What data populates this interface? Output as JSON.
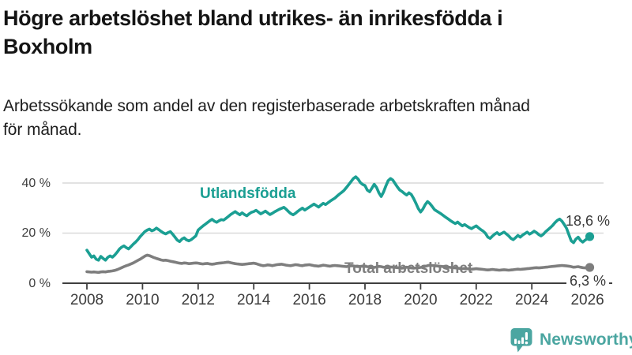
{
  "header": {
    "title_line1": "Högre arbetslöshet bland utrikes- än inrikesfödda i",
    "title_line2": "Boxholm",
    "subtitle_line1": "Arbetssökande som andel av den registerbaserade arbetskraften månad",
    "subtitle_line2": "för månad."
  },
  "colors": {
    "teal": "#1b9f93",
    "gray": "#7e7e7e",
    "axis": "#3f3f3f",
    "grid": "#d9d9d9",
    "value_label": "#383838",
    "brand_teal": "#4ba6a1"
  },
  "chart_data": {
    "type": "line",
    "title": "Högre arbetslöshet bland utrikes- än inrikesfödda i Boxholm",
    "subtitle": "Arbetssökande som andel av den registerbaserade arbetskraften månad för månad.",
    "unit": "%",
    "x_start_year": 2008,
    "points_per_year": 12,
    "x_ticks": [
      2008,
      2010,
      2012,
      2014,
      2016,
      2018,
      2020,
      2022,
      2024,
      2026
    ],
    "y_ticks": [
      {
        "v": 0,
        "label": "0 %"
      },
      {
        "v": 20,
        "label": "20 %"
      },
      {
        "v": 40,
        "label": "40 %"
      }
    ],
    "ylim": [
      0,
      45
    ],
    "grid": "horizontal",
    "legend": "inline-labels",
    "series": [
      {
        "id": "utlandsfodda",
        "name": "Utlandsfödda",
        "color": "#1b9f93",
        "end_label": "18,6 %",
        "end_value": 18.6,
        "values": [
          13.2,
          11.8,
          10.4,
          10.9,
          9.6,
          9.2,
          10.7,
          9.9,
          9.2,
          10.3,
          10.9,
          10.4,
          11.2,
          12.3,
          13.6,
          14.4,
          14.9,
          14.2,
          13.7,
          14.6,
          15.6,
          16.4,
          17.4,
          18.6,
          19.6,
          20.6,
          21.2,
          21.6,
          20.9,
          21.3,
          22.0,
          21.4,
          20.7,
          20.1,
          19.7,
          20.2,
          20.6,
          19.6,
          18.4,
          17.2,
          16.6,
          17.6,
          18.1,
          17.3,
          16.9,
          17.4,
          18.1,
          18.9,
          21.2,
          22.0,
          22.8,
          23.5,
          24.2,
          24.9,
          25.5,
          24.8,
          24.3,
          24.9,
          25.4,
          25.2,
          25.9,
          26.6,
          27.4,
          28.0,
          28.6,
          27.9,
          27.3,
          28.1,
          27.4,
          26.9,
          27.7,
          28.3,
          28.6,
          29.1,
          28.4,
          27.7,
          28.2,
          28.8,
          28.1,
          27.4,
          27.9,
          28.5,
          29.0,
          29.5,
          29.9,
          30.3,
          29.5,
          28.6,
          27.8,
          27.3,
          27.9,
          28.7,
          29.4,
          30.0,
          29.2,
          29.8,
          30.4,
          31.0,
          31.6,
          31.0,
          30.4,
          31.2,
          31.9,
          31.4,
          32.1,
          32.8,
          33.4,
          34.0,
          34.8,
          35.6,
          36.3,
          37.1,
          38.2,
          39.4,
          40.6,
          41.8,
          42.5,
          41.6,
          40.2,
          39.4,
          39.0,
          37.2,
          36.5,
          38.0,
          39.5,
          38.2,
          36.1,
          34.6,
          36.4,
          38.8,
          40.9,
          41.8,
          41.2,
          39.8,
          38.4,
          37.2,
          36.6,
          35.8,
          35.2,
          36.1,
          35.4,
          33.8,
          31.9,
          29.8,
          28.4,
          29.6,
          31.4,
          32.6,
          31.8,
          30.6,
          29.4,
          28.8,
          28.2,
          27.6,
          26.9,
          26.2,
          25.6,
          24.9,
          24.3,
          23.8,
          24.4,
          23.6,
          22.9,
          23.4,
          22.8,
          22.2,
          21.8,
          22.4,
          22.9,
          22.1,
          21.4,
          20.8,
          19.9,
          18.4,
          17.9,
          18.8,
          19.6,
          20.2,
          19.4,
          19.9,
          20.4,
          19.7,
          18.9,
          17.9,
          17.4,
          18.2,
          19.1,
          18.4,
          19.2,
          19.8,
          20.4,
          19.6,
          20.1,
          20.8,
          20.2,
          19.4,
          18.9,
          19.6,
          20.6,
          21.4,
          22.2,
          23.1,
          24.2,
          25.1,
          25.6,
          24.8,
          23.4,
          21.9,
          19.4,
          16.9,
          16.2,
          17.6,
          18.4,
          17.1,
          16.4,
          17.2,
          17.9,
          18.6
        ]
      },
      {
        "id": "total",
        "name": "Total arbetslöshet",
        "color": "#7e7e7e",
        "end_label": "6,3 %",
        "end_value": 6.3,
        "values": [
          4.6,
          4.5,
          4.4,
          4.5,
          4.4,
          4.3,
          4.5,
          4.6,
          4.5,
          4.7,
          4.8,
          4.9,
          5.1,
          5.4,
          5.8,
          6.2,
          6.6,
          7.0,
          7.3,
          7.7,
          8.1,
          8.6,
          9.1,
          9.6,
          10.2,
          10.8,
          11.2,
          11.0,
          10.6,
          10.2,
          9.9,
          9.6,
          9.3,
          9.1,
          9.2,
          9.0,
          8.8,
          8.6,
          8.4,
          8.2,
          8.0,
          7.9,
          8.1,
          8.0,
          7.8,
          7.9,
          8.0,
          8.1,
          8.0,
          7.8,
          7.7,
          7.8,
          7.9,
          7.7,
          7.6,
          7.7,
          7.9,
          8.0,
          8.1,
          8.2,
          8.3,
          8.4,
          8.2,
          8.0,
          7.8,
          7.7,
          7.6,
          7.5,
          7.6,
          7.7,
          7.8,
          7.9,
          8.0,
          7.8,
          7.5,
          7.2,
          7.0,
          7.1,
          7.3,
          7.2,
          7.0,
          7.2,
          7.4,
          7.5,
          7.6,
          7.4,
          7.2,
          7.1,
          7.0,
          7.2,
          7.4,
          7.3,
          7.1,
          7.0,
          7.2,
          7.3,
          7.4,
          7.2,
          7.0,
          6.9,
          6.8,
          7.0,
          7.2,
          7.1,
          6.9,
          6.8,
          7.0,
          7.1,
          7.0,
          6.9,
          6.8,
          6.7,
          6.6,
          6.8,
          7.0,
          6.9,
          6.7,
          6.6,
          6.7,
          6.8,
          6.7,
          6.6,
          6.5,
          6.4,
          6.3,
          6.5,
          6.7,
          6.6,
          6.4,
          6.3,
          6.4,
          6.5,
          6.4,
          6.3,
          6.2,
          6.1,
          6.0,
          6.2,
          6.4,
          6.3,
          6.1,
          6.0,
          6.1,
          6.2,
          6.3,
          6.4,
          6.7,
          7.0,
          7.2,
          7.1,
          7.0,
          6.9,
          6.8,
          6.7,
          6.6,
          6.5,
          6.4,
          6.3,
          6.2,
          6.1,
          6.0,
          5.9,
          5.8,
          5.9,
          5.8,
          5.7,
          5.6,
          5.7,
          5.8,
          5.7,
          5.6,
          5.5,
          5.4,
          5.3,
          5.4,
          5.5,
          5.4,
          5.3,
          5.2,
          5.3,
          5.4,
          5.3,
          5.2,
          5.3,
          5.4,
          5.5,
          5.6,
          5.5,
          5.6,
          5.7,
          5.8,
          5.9,
          6.0,
          6.1,
          6.2,
          6.1,
          6.2,
          6.3,
          6.4,
          6.5,
          6.6,
          6.7,
          6.8,
          6.9,
          7.0,
          7.1,
          7.0,
          6.9,
          6.8,
          6.6,
          6.4,
          6.5,
          6.6,
          6.4,
          6.2,
          6.1,
          6.2,
          6.3
        ]
      }
    ]
  },
  "footer": {
    "brand": "Newsworthy"
  }
}
